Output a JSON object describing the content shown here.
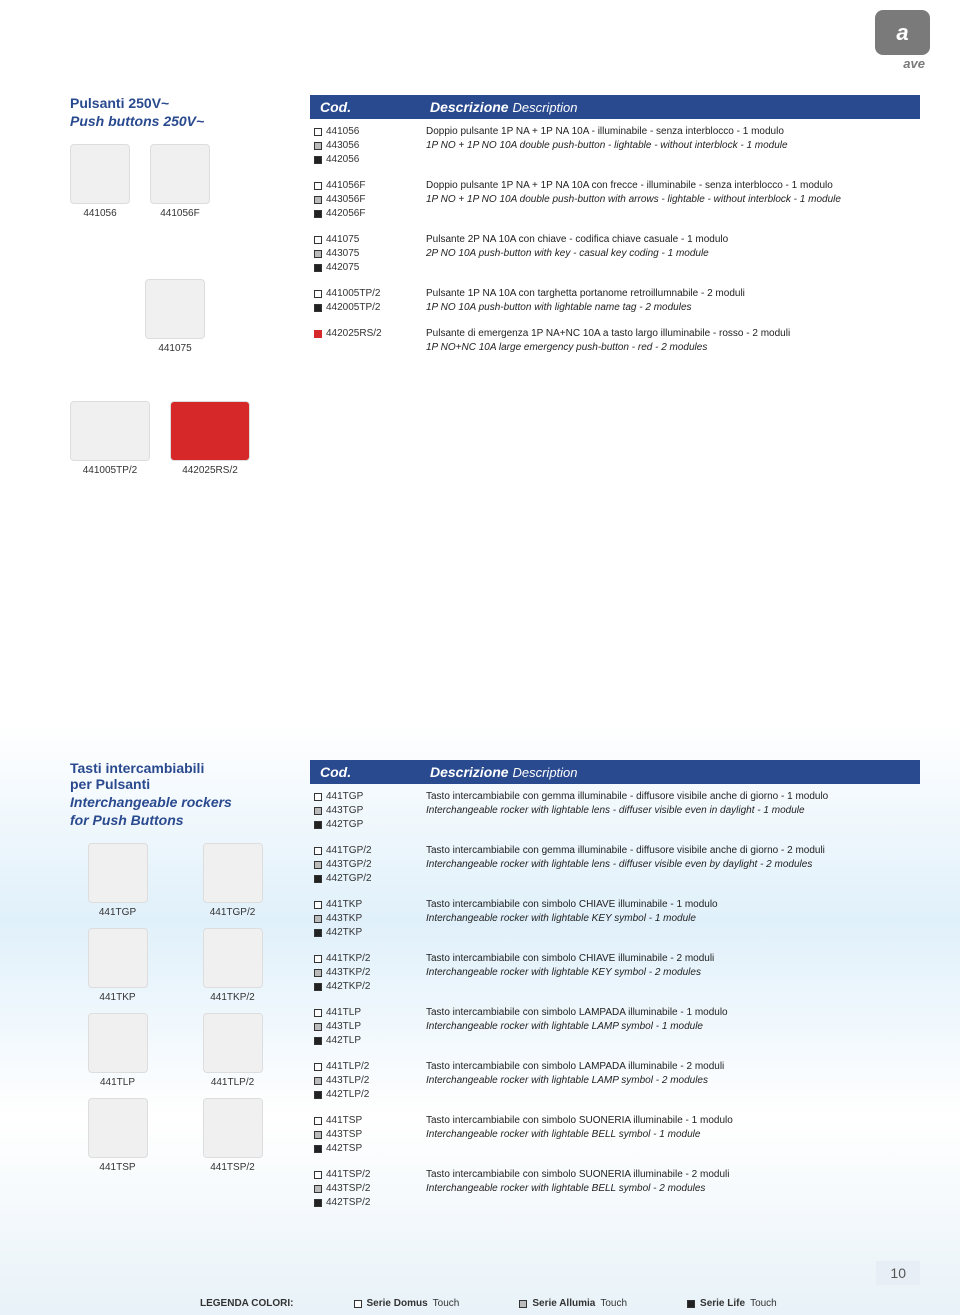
{
  "brand": {
    "logo": "a",
    "name": "ave"
  },
  "page_number": "10",
  "colors": {
    "header_bg": "#2a4a8f",
    "text_dark": "#222222",
    "red": "#d62828",
    "grey": "#bbbbbb"
  },
  "section1": {
    "title_it": "Pulsanti 250V~",
    "title_en": "Push buttons 250V~",
    "header_cod": "Cod.",
    "header_desc_it": "Descrizione",
    "header_desc_en": "Description",
    "rows": [
      {
        "codes": [
          {
            "variant": "white",
            "code": "441056"
          },
          {
            "variant": "grey",
            "code": "443056"
          },
          {
            "variant": "black",
            "code": "442056"
          }
        ],
        "it": "Doppio pulsante 1P NA + 1P NA 10A - illuminabile - senza interblocco - 1 modulo",
        "en": "1P NO + 1P NO 10A double push-button - lightable - without interblock - 1 module"
      },
      {
        "codes": [
          {
            "variant": "white",
            "code": "441056F"
          },
          {
            "variant": "grey",
            "code": "443056F"
          },
          {
            "variant": "black",
            "code": "442056F"
          }
        ],
        "it": "Doppio pulsante 1P NA + 1P NA 10A con frecce - illuminabile - senza interblocco - 1 modulo",
        "en": "1P NO + 1P NO 10A double push-button with arrows - lightable - without interblock - 1 module"
      },
      {
        "codes": [
          {
            "variant": "white",
            "code": "441075"
          },
          {
            "variant": "grey",
            "code": "443075"
          },
          {
            "variant": "black",
            "code": "442075"
          }
        ],
        "it": "Pulsante 2P NA 10A con chiave - codifica chiave casuale - 1 modulo",
        "en": "2P NO 10A push-button with key - casual key coding - 1 module"
      },
      {
        "codes": [
          {
            "variant": "white",
            "code": "441005TP/2"
          },
          {
            "variant": "black",
            "code": "442005TP/2"
          }
        ],
        "it": "Pulsante 1P NA 10A con targhetta portanome retroillumnabile - 2 moduli",
        "en": "1P NO 10A push-button with lightable name tag - 2 modules"
      },
      {
        "codes": [
          {
            "variant": "red",
            "code": "442025RS/2"
          }
        ],
        "it": "Pulsante di emergenza 1P NA+NC 10A a tasto largo illuminabile - rosso - 2 moduli",
        "en": "1P NO+NC 10A large emergency push-button - red - 2 modules"
      }
    ],
    "thumbs_top": [
      {
        "label": "441056"
      },
      {
        "label": "441056F"
      }
    ],
    "thumb_single": {
      "label": "441075"
    },
    "thumbs_bottom": [
      {
        "label": "441005TP/2"
      },
      {
        "label": "442025RS/2"
      }
    ]
  },
  "section2": {
    "title_it1": "Tasti intercambiabili",
    "title_it2": "per Pulsanti",
    "title_en1": "Interchangeable rockers",
    "title_en2": "for Push Buttons",
    "header_cod": "Cod.",
    "header_desc_it": "Descrizione",
    "header_desc_en": "Description",
    "rows": [
      {
        "codes": [
          {
            "variant": "white",
            "code": "441TGP"
          },
          {
            "variant": "grey",
            "code": "443TGP"
          },
          {
            "variant": "black",
            "code": "442TGP"
          }
        ],
        "it": "Tasto intercambiabile con gemma illuminabile - diffusore visibile anche di giorno - 1 modulo",
        "en": "Interchangeable rocker with lightable lens - diffuser visible even in daylight - 1 module"
      },
      {
        "codes": [
          {
            "variant": "white",
            "code": "441TGP/2"
          },
          {
            "variant": "grey",
            "code": "443TGP/2"
          },
          {
            "variant": "black",
            "code": "442TGP/2"
          }
        ],
        "it": "Tasto intercambiabile con gemma illuminabile - diffusore visibile anche di giorno - 2 moduli",
        "en": "Interchangeable rocker with lightable lens - diffuser visible even by daylight - 2 modules"
      },
      {
        "codes": [
          {
            "variant": "white",
            "code": "441TKP"
          },
          {
            "variant": "grey",
            "code": "443TKP"
          },
          {
            "variant": "black",
            "code": "442TKP"
          }
        ],
        "it": "Tasto intercambiabile con simbolo CHIAVE illuminabile - 1 modulo",
        "en": "Interchangeable rocker with lightable KEY symbol - 1 module"
      },
      {
        "codes": [
          {
            "variant": "white",
            "code": "441TKP/2"
          },
          {
            "variant": "grey",
            "code": "443TKP/2"
          },
          {
            "variant": "black",
            "code": "442TKP/2"
          }
        ],
        "it": "Tasto intercambiabile con simbolo CHIAVE illuminabile - 2 moduli",
        "en": "Interchangeable rocker with lightable KEY symbol - 2 modules"
      },
      {
        "codes": [
          {
            "variant": "white",
            "code": "441TLP"
          },
          {
            "variant": "grey",
            "code": "443TLP"
          },
          {
            "variant": "black",
            "code": "442TLP"
          }
        ],
        "it": "Tasto intercambiabile con simbolo LAMPADA illuminabile - 1 modulo",
        "en": "Interchangeable rocker with lightable LAMP symbol - 1 module"
      },
      {
        "codes": [
          {
            "variant": "white",
            "code": "441TLP/2"
          },
          {
            "variant": "grey",
            "code": "443TLP/2"
          },
          {
            "variant": "black",
            "code": "442TLP/2"
          }
        ],
        "it": "Tasto intercambiabile con simbolo LAMPADA illuminabile - 2 moduli",
        "en": "Interchangeable rocker with lightable LAMP symbol - 2 modules"
      },
      {
        "codes": [
          {
            "variant": "white",
            "code": "441TSP"
          },
          {
            "variant": "grey",
            "code": "443TSP"
          },
          {
            "variant": "black",
            "code": "442TSP"
          }
        ],
        "it": "Tasto intercambiabile con simbolo SUONERIA illuminabile - 1 modulo",
        "en": "Interchangeable rocker with lightable BELL symbol - 1 module"
      },
      {
        "codes": [
          {
            "variant": "white",
            "code": "441TSP/2"
          },
          {
            "variant": "grey",
            "code": "443TSP/2"
          },
          {
            "variant": "black",
            "code": "442TSP/2"
          }
        ],
        "it": "Tasto intercambiabile con simbolo SUONERIA illuminabile - 2 moduli",
        "en": "Interchangeable rocker with lightable BELL symbol - 2 modules"
      }
    ],
    "thumbs": [
      {
        "label": "441TGP"
      },
      {
        "label": "441TGP/2"
      },
      {
        "label": "441TKP"
      },
      {
        "label": "441TKP/2"
      },
      {
        "label": "441TLP"
      },
      {
        "label": "441TLP/2"
      },
      {
        "label": "441TSP"
      },
      {
        "label": "441TSP/2"
      }
    ]
  },
  "legend": {
    "title": "LEGENDA COLORI:",
    "items": [
      {
        "variant": "white",
        "prefix": "Serie Domus",
        "suffix": "Touch"
      },
      {
        "variant": "grey",
        "prefix": "Serie Allumia",
        "suffix": "Touch"
      },
      {
        "variant": "black",
        "prefix": "Serie Life",
        "suffix": "Touch"
      }
    ]
  }
}
